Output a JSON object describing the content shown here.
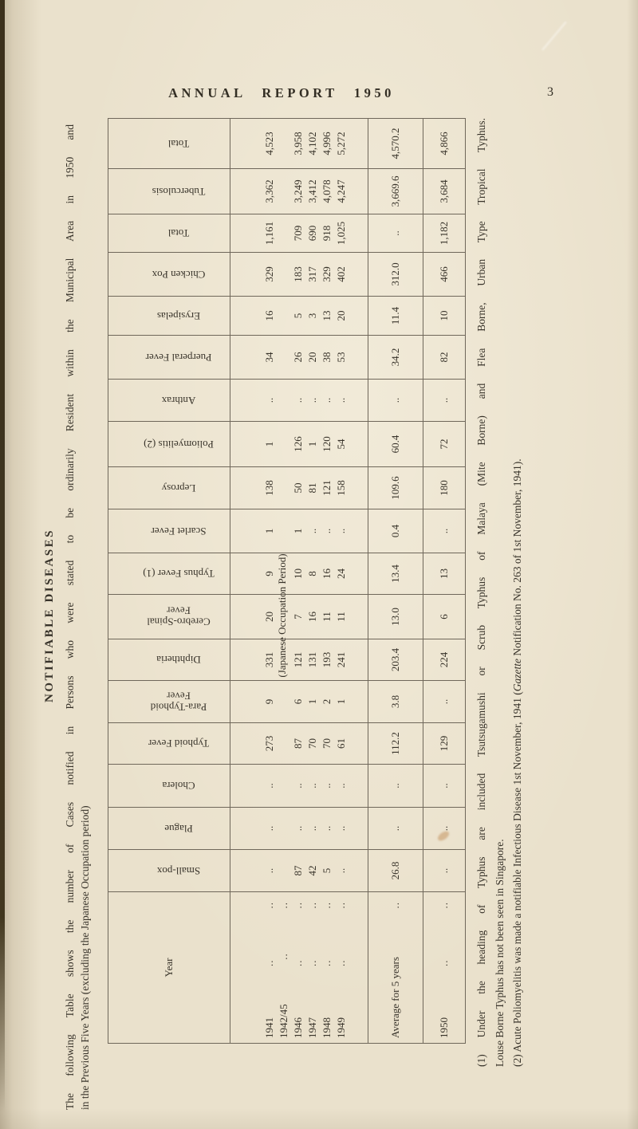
{
  "page": {
    "header": "ANNUAL REPORT 1950",
    "page_number": "3"
  },
  "section": {
    "title": "NOTIFIABLE DISEASES",
    "caption_line1": "The following Table shows the number of Cases notified in Persons who were stated to be ordinarily Resident within the Municipal Area in 1950 and",
    "caption_line2": "in the Previous Five Years (excluding the Japanese Occupation period)"
  },
  "table": {
    "columns": [
      "Year",
      "Small-pox",
      "Plague",
      "Cholera",
      "Typhoid Fever",
      "Para-Typhoid\nFever",
      "Diphtheria",
      "Cerebro-Spinal\nFever",
      "Typhus Fever (1)",
      "Scarlet Fever",
      "Leprosy",
      "Poliomyelitis (2)",
      "Anthrax",
      "Puerperal Fever",
      "Erysipelas",
      "Chicken Pox",
      "Total",
      "Tuberculosis",
      "Total"
    ],
    "leader": "..",
    "occupation_note": "(Japanese Occupation Period)",
    "rows": [
      {
        "year": "1941",
        "leaders": 2,
        "occupation": false,
        "values": [
          "..",
          "..",
          "..",
          "273",
          "9",
          "331",
          "20",
          "9",
          "1",
          "138",
          "1",
          "..",
          "34",
          "16",
          "329",
          "1,161",
          "3,362",
          "4,523"
        ]
      },
      {
        "year": "1942/45",
        "leaders": 2,
        "occupation": true,
        "values": [
          "",
          "",
          "",
          "",
          "",
          "",
          "",
          "",
          "",
          "",
          "",
          "",
          "",
          "",
          "",
          "",
          "",
          ""
        ]
      },
      {
        "year": "1946",
        "leaders": 2,
        "occupation": false,
        "values": [
          "87",
          "..",
          "..",
          "87",
          "6",
          "121",
          "7",
          "10",
          "1",
          "50",
          "126",
          "..",
          "26",
          "5",
          "183",
          "709",
          "3,249",
          "3,958"
        ]
      },
      {
        "year": "1947",
        "leaders": 2,
        "occupation": false,
        "values": [
          "42",
          "..",
          "..",
          "70",
          "1",
          "131",
          "16",
          "8",
          "..",
          "81",
          "1",
          "..",
          "20",
          "3",
          "317",
          "690",
          "3,412",
          "4,102"
        ]
      },
      {
        "year": "1948",
        "leaders": 2,
        "occupation": false,
        "values": [
          "5",
          "..",
          "..",
          "70",
          "2",
          "193",
          "11",
          "16",
          "..",
          "121",
          "120",
          "..",
          "38",
          "13",
          "329",
          "918",
          "4,078",
          "4,996"
        ]
      },
      {
        "year": "1949",
        "leaders": 2,
        "occupation": false,
        "values": [
          "..",
          "..",
          "..",
          "61",
          "1",
          "241",
          "11",
          "24",
          "..",
          "158",
          "54",
          "..",
          "53",
          "20",
          "402",
          "1,025",
          "4,247",
          "5,272"
        ]
      },
      {
        "year": "Average for 5 years",
        "leaders": 1,
        "occupation": false,
        "values": [
          "26.8",
          "..",
          "..",
          "112.2",
          "3.8",
          "203.4",
          "13.0",
          "13.4",
          "0.4",
          "109.6",
          "60.4",
          "..",
          "34.2",
          "11.4",
          "312.0",
          "..",
          "3,669.6",
          "4,570.2"
        ]
      },
      {
        "year": "1950",
        "leaders": 2,
        "occupation": false,
        "values": [
          "..",
          "..",
          "..",
          "129",
          "..",
          "224",
          "6",
          "13",
          "..",
          "180",
          "72",
          "..",
          "82",
          "10",
          "466",
          "1,182",
          "3,684",
          "4,866"
        ]
      }
    ]
  },
  "footnotes": {
    "note1": "(1) Under the heading of Typhus are included Tsutsugamushi or Scrub Typhus of Malaya (Mite Borne) and Flea Borne, Urban Type Tropical Typhus.",
    "note1b": "Louse Borne Typhus has not been seen in Singapore.",
    "note2_pre": "(2) Acute Poliomyelitis was made a notifiable Infectious Disease 1st November, 1941 (",
    "note2_italic": "Gazette",
    "note2_post": " Notification No. 263 of 1st November, 1941)."
  },
  "colors": {
    "paper": "#eae1cc",
    "ink": "#38332a",
    "rule": "#6f675a"
  }
}
